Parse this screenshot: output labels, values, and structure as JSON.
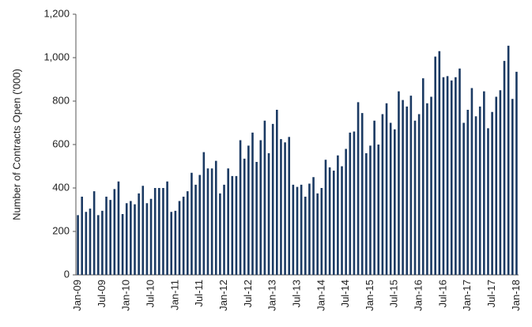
{
  "chart_data": {
    "type": "bar",
    "y_label": "Number of Contracts Open ('000)",
    "color": "#1b3a63",
    "categories": [
      "Jan-09",
      null,
      null,
      null,
      null,
      null,
      "Jul-09",
      null,
      null,
      null,
      null,
      null,
      "Jan-10",
      null,
      null,
      null,
      null,
      null,
      "Jul-10",
      null,
      null,
      null,
      null,
      null,
      "Jan-11",
      null,
      null,
      null,
      null,
      null,
      "Jul-11",
      null,
      null,
      null,
      null,
      null,
      "Jan-12",
      null,
      null,
      null,
      null,
      null,
      "Jul-12",
      null,
      null,
      null,
      null,
      null,
      "Jan-13",
      null,
      null,
      null,
      null,
      null,
      "Jul-13",
      null,
      null,
      null,
      null,
      null,
      "Jan-14",
      null,
      null,
      null,
      null,
      null,
      "Jul-14",
      null,
      null,
      null,
      null,
      null,
      "Jan-15",
      null,
      null,
      null,
      null,
      null,
      "Jul-15",
      null,
      null,
      null,
      null,
      null,
      "Jan-16",
      null,
      null,
      null,
      null,
      null,
      "Jul-16",
      null,
      null,
      null,
      null,
      null,
      "Jan-17",
      null,
      null,
      null,
      null,
      null,
      "Jul-17",
      null,
      null,
      null,
      null,
      null,
      "Jan-18"
    ],
    "values": [
      275,
      360,
      290,
      305,
      385,
      275,
      295,
      360,
      345,
      395,
      430,
      280,
      330,
      340,
      325,
      375,
      410,
      330,
      350,
      400,
      400,
      400,
      430,
      290,
      295,
      340,
      360,
      385,
      470,
      415,
      460,
      565,
      490,
      490,
      525,
      375,
      415,
      490,
      455,
      455,
      620,
      535,
      595,
      655,
      520,
      620,
      710,
      560,
      695,
      760,
      625,
      610,
      635,
      415,
      405,
      415,
      360,
      420,
      450,
      375,
      400,
      530,
      495,
      480,
      550,
      500,
      580,
      655,
      660,
      795,
      745,
      560,
      595,
      710,
      600,
      740,
      790,
      700,
      670,
      845,
      805,
      775,
      825,
      710,
      740,
      905,
      790,
      820,
      1005,
      1030,
      910,
      915,
      895,
      910,
      950,
      700,
      760,
      860,
      730,
      775,
      845,
      675,
      750,
      820,
      850,
      985,
      1055,
      810,
      935
    ],
    "ylim": [
      0,
      1200
    ],
    "yticks": [
      0,
      200,
      400,
      600,
      800,
      {
        "value": 1000,
        "label": "1,000"
      },
      {
        "value": 1200,
        "label": "1,200"
      }
    ]
  }
}
